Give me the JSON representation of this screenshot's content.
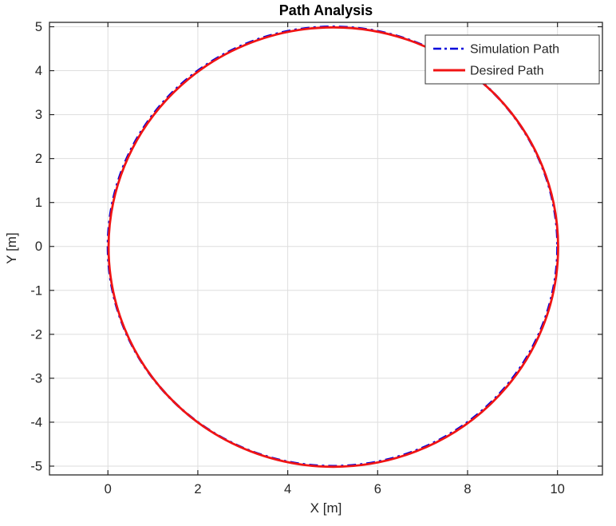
{
  "chart_data": {
    "type": "line",
    "title": "Path Analysis",
    "xlabel": "X [m]",
    "ylabel": "Y [m]",
    "xlim": [
      -1.3,
      11.0
    ],
    "ylim": [
      -5.2,
      5.1
    ],
    "xticks": [
      0,
      2,
      4,
      6,
      8,
      10
    ],
    "yticks": [
      -5,
      -4,
      -3,
      -2,
      -1,
      0,
      1,
      2,
      3,
      4,
      5
    ],
    "grid": true,
    "legend": {
      "position": "upper right",
      "entries": [
        "Simulation Path",
        "Desired Path"
      ]
    },
    "colors": {
      "background": "#FFFFFF",
      "axis": "#262626",
      "grid": "#DEDEDE",
      "text": "#262626",
      "title": "#000000",
      "legend_border": "#333333"
    },
    "series": [
      {
        "name": "Simulation Path",
        "shape": "circle",
        "center": [
          5,
          0
        ],
        "radius": 5,
        "color": "#0000DC",
        "linestyle": "dash-dot"
      },
      {
        "name": "Desired Path",
        "shape": "circle",
        "center": [
          5,
          0
        ],
        "radius": 5,
        "color": "#F01414",
        "linestyle": "solid"
      }
    ]
  }
}
